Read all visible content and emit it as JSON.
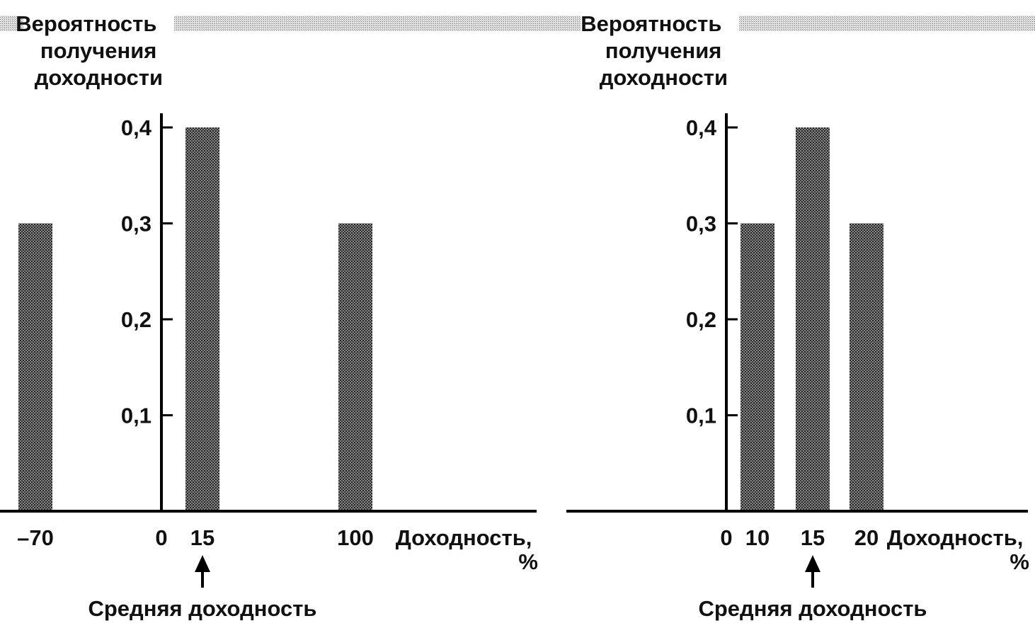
{
  "colors": {
    "bar": "#555555",
    "band": "#c4c4c4",
    "axis": "#000000",
    "text": "#111111"
  },
  "chart_data": [
    {
      "type": "bar",
      "ylabel_lines": [
        "Вероятность",
        "получения",
        "доходности"
      ],
      "xlabel_lines": [
        "Доходность,",
        "%"
      ],
      "ylim": [
        0,
        0.4
      ],
      "y_ticks": [
        {
          "value": 0.1,
          "label": "0,1"
        },
        {
          "value": 0.2,
          "label": "0,2"
        },
        {
          "value": 0.3,
          "label": "0,3"
        },
        {
          "value": 0.4,
          "label": "0,4"
        }
      ],
      "x_ticks": [
        {
          "value": -70,
          "label": "–70"
        },
        {
          "value": 0,
          "label": "0"
        },
        {
          "value": 15,
          "label": "15"
        },
        {
          "value": 100,
          "label": "100"
        }
      ],
      "x": [
        -70,
        15,
        100
      ],
      "values": [
        0.3,
        0.4,
        0.3
      ],
      "mean": {
        "value": 15,
        "label": "Средняя доходность"
      }
    },
    {
      "type": "bar",
      "ylabel_lines": [
        "Вероятность",
        "получения",
        "доходности"
      ],
      "xlabel_lines": [
        "Доходность,",
        "%"
      ],
      "ylim": [
        0,
        0.4
      ],
      "y_ticks": [
        {
          "value": 0.1,
          "label": "0,1"
        },
        {
          "value": 0.2,
          "label": "0,2"
        },
        {
          "value": 0.3,
          "label": "0,3"
        },
        {
          "value": 0.4,
          "label": "0,4"
        }
      ],
      "x_ticks": [
        {
          "value": 0,
          "label": "0"
        },
        {
          "value": 10,
          "label": "10"
        },
        {
          "value": 15,
          "label": "15"
        },
        {
          "value": 20,
          "label": "20"
        }
      ],
      "x": [
        10,
        15,
        20
      ],
      "values": [
        0.3,
        0.4,
        0.3
      ],
      "mean": {
        "value": 15,
        "label": "Средняя доходность"
      }
    }
  ]
}
